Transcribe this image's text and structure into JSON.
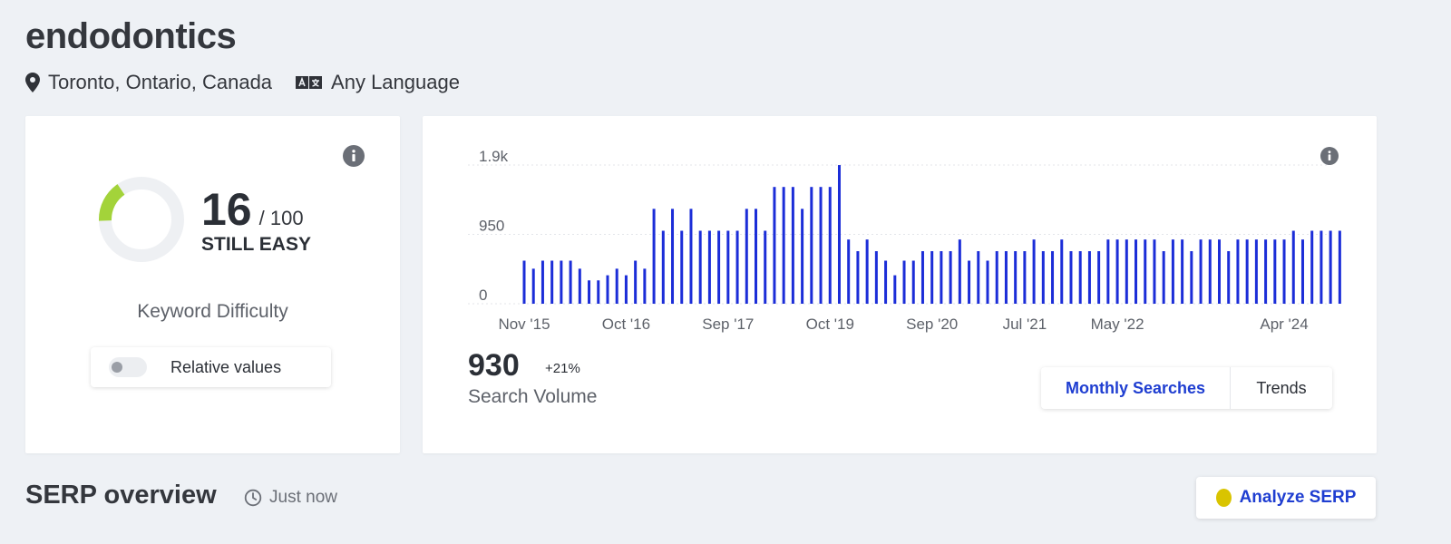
{
  "keyword": "endodontics",
  "location": "Toronto, Ontario, Canada",
  "language": "Any Language",
  "difficulty": {
    "score": "16",
    "max_label": "/ 100",
    "score_value": 16,
    "score_max": 100,
    "level": "STILL EASY",
    "label": "Keyword Difficulty",
    "relative_values_label": "Relative values",
    "gauge_color": "#a3d33a"
  },
  "search_volume": {
    "value": "930",
    "change": "+21%",
    "label": "Search Volume",
    "tabs": {
      "active": "Monthly Searches",
      "other": "Trends"
    }
  },
  "chart_data": {
    "type": "bar",
    "series_color": "#1b2dd8",
    "ylim": [
      0,
      2000
    ],
    "y_ticks": [
      {
        "value": 0,
        "label": "0"
      },
      {
        "value": 950,
        "label": "950"
      },
      {
        "value": 1900,
        "label": "1.9k"
      }
    ],
    "x_tick_labels": [
      {
        "index": 0,
        "label": "Nov '15"
      },
      {
        "index": 11,
        "label": "Oct '16"
      },
      {
        "index": 22,
        "label": "Sep '17"
      },
      {
        "index": 33,
        "label": "Oct '19"
      },
      {
        "index": 44,
        "label": "Sep '20"
      },
      {
        "index": 54,
        "label": "Jul '21"
      },
      {
        "index": 64,
        "label": "May '22"
      },
      {
        "index": 82,
        "label": "Apr '24"
      }
    ],
    "values": [
      590,
      480,
      590,
      590,
      590,
      590,
      480,
      320,
      320,
      390,
      480,
      390,
      590,
      480,
      1300,
      1000,
      1300,
      1000,
      1300,
      1000,
      1000,
      1000,
      1000,
      1000,
      1300,
      1300,
      1000,
      1600,
      1600,
      1600,
      1300,
      1600,
      1600,
      1600,
      1900,
      880,
      720,
      880,
      720,
      590,
      390,
      590,
      590,
      720,
      720,
      720,
      720,
      880,
      590,
      720,
      590,
      720,
      720,
      720,
      720,
      880,
      720,
      720,
      880,
      720,
      720,
      720,
      720,
      880,
      880,
      880,
      880,
      880,
      880,
      720,
      880,
      880,
      720,
      880,
      880,
      880,
      720,
      880,
      880,
      880,
      880,
      880,
      880,
      1000,
      880,
      1000,
      1000,
      1000,
      1000
    ]
  },
  "serp": {
    "title": "SERP overview",
    "time": "Just now",
    "analyze_label": "Analyze SERP"
  }
}
